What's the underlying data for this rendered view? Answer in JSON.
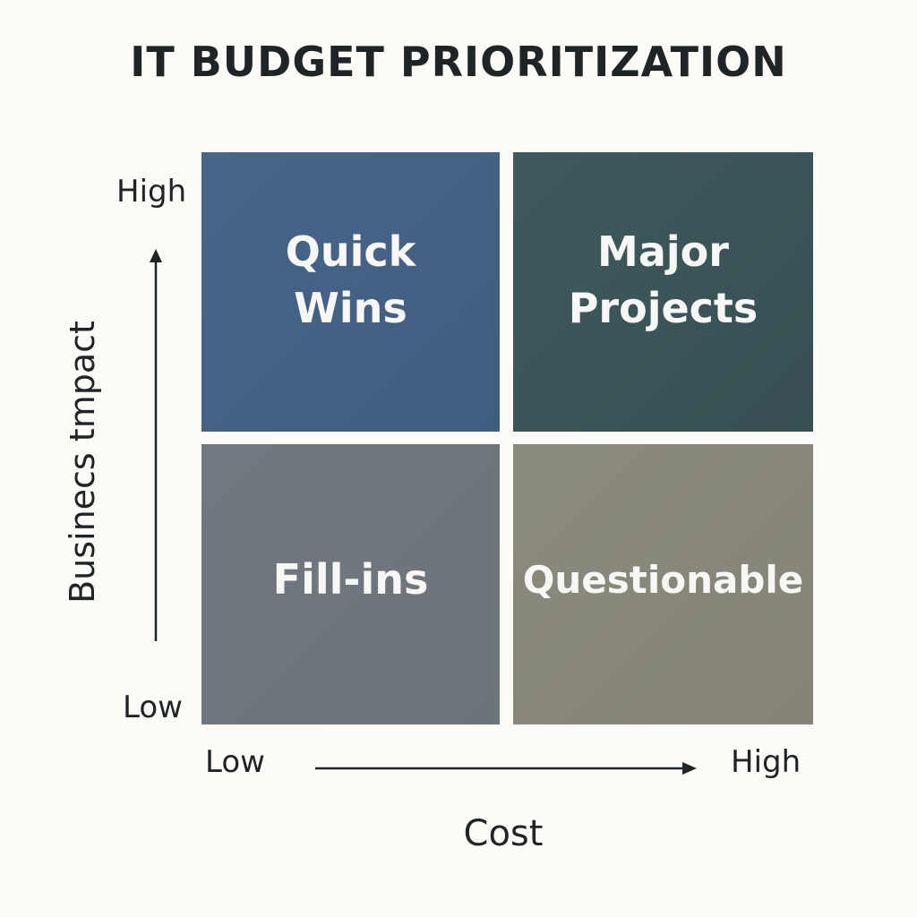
{
  "title": "IT BUDGET PRIORITIZATION",
  "quadrants": {
    "top_left": {
      "label": "Quick\nWins",
      "color": "#45638a"
    },
    "top_right": {
      "label": "Major\nProjects",
      "color": "#3a5458"
    },
    "bottom_left": {
      "label": "Fill-ins",
      "color": "#6f767e"
    },
    "bottom_right": {
      "label": "Questionable",
      "color": "#89887b"
    }
  },
  "y_axis": {
    "label": "Businecs tmpact",
    "high": "High",
    "low": "Low"
  },
  "x_axis": {
    "label": "Cost",
    "high": "High",
    "low": "Low"
  }
}
